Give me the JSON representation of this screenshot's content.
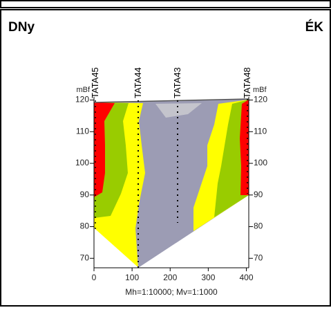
{
  "chart_data": {
    "type": "cross-section",
    "left_label": "DNy",
    "right_label": "ÉK",
    "boreholes": [
      "TATA45",
      "TATA44",
      "TATA43",
      "TATA48"
    ],
    "y_unit": "mBf",
    "xlim": [
      0,
      410
    ],
    "xticks": [
      0,
      100,
      200,
      300,
      400
    ],
    "ylim": [
      67,
      121
    ],
    "yticks": [
      70,
      80,
      90,
      100,
      110,
      120
    ],
    "caption": "Mh=1:10000; Mv=1:1000"
  }
}
